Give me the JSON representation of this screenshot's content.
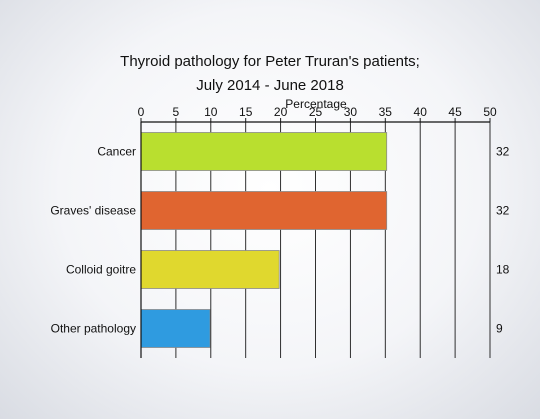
{
  "chart_data": {
    "type": "bar",
    "orientation": "horizontal",
    "title_line1": "Thyroid pathology for Peter Truran's patients;",
    "title_line2": "July 2014 - June 2018",
    "xlabel": "Percentage",
    "xlim": [
      0,
      50
    ],
    "xticks": [
      0,
      5,
      10,
      15,
      20,
      25,
      30,
      35,
      40,
      45,
      50
    ],
    "grid": true,
    "categories": [
      "Cancer",
      "Graves' disease",
      "Colloid goitre",
      "Other pathology"
    ],
    "values": [
      35.2,
      35.2,
      19.8,
      9.9
    ],
    "data_labels": [
      "32",
      "32",
      "18",
      "9"
    ],
    "colors": [
      "#b9df2f",
      "#e06530",
      "#e0d82e",
      "#2f9be0"
    ]
  }
}
